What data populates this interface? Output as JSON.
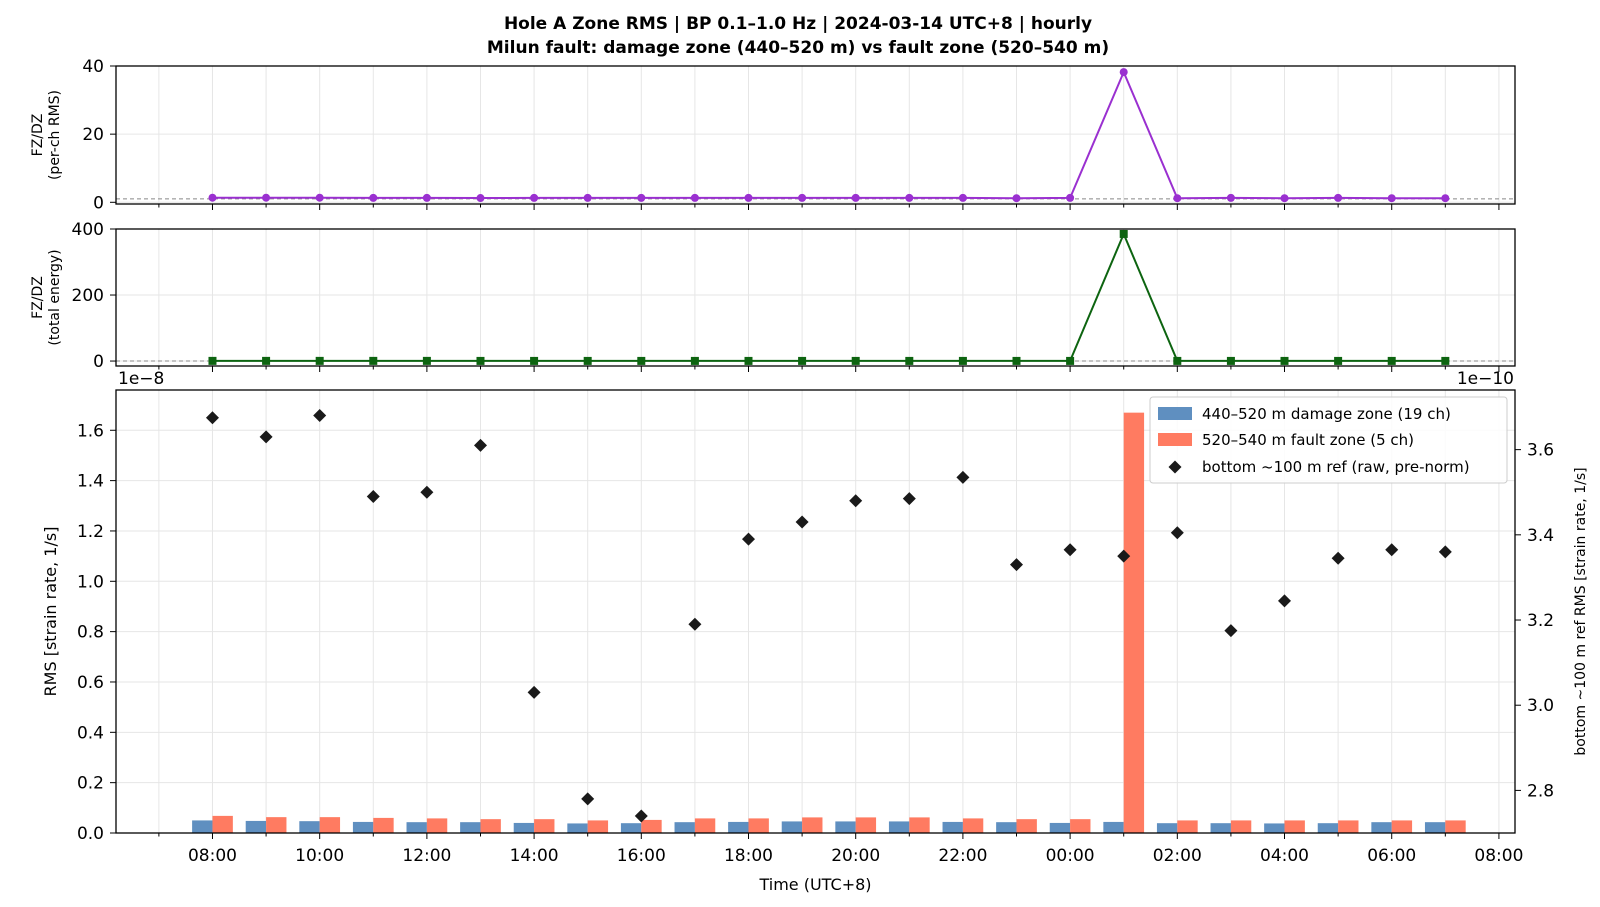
{
  "title_line1": "Hole A Zone RMS  |  BP 0.1–1.0 Hz  |  2024-03-14 UTC+8  |  hourly",
  "title_line2": "Milun fault: damage zone (440–520 m) vs fault zone (520–540 m)",
  "colors": {
    "damage": "#5f8fc0",
    "fault": "#ff7b61",
    "per_ch": "#9a30d0",
    "energy": "#0d6410",
    "ref": "#1a1a1a"
  },
  "chart_data": [
    {
      "type": "line",
      "panel": "top",
      "ylabel": [
        "FZ/DZ",
        "(per-ch RMS)"
      ],
      "ylim": [
        -0.5,
        40
      ],
      "yticks": [
        0,
        20,
        40
      ],
      "reference_line": 1,
      "grid": true,
      "x_hours": [
        8,
        9,
        10,
        11,
        12,
        13,
        14,
        15,
        16,
        17,
        18,
        19,
        20,
        21,
        22,
        23,
        24,
        25,
        26,
        27,
        28,
        29,
        30,
        31
      ],
      "values": [
        1.35,
        1.35,
        1.35,
        1.3,
        1.3,
        1.25,
        1.3,
        1.3,
        1.3,
        1.3,
        1.3,
        1.3,
        1.3,
        1.3,
        1.3,
        1.2,
        1.3,
        38.2,
        1.2,
        1.3,
        1.2,
        1.3,
        1.2,
        1.2
      ]
    },
    {
      "type": "line",
      "panel": "middle",
      "ylabel": [
        "FZ/DZ",
        "(total energy)"
      ],
      "ylim": [
        -15,
        400
      ],
      "yticks": [
        0,
        200,
        400
      ],
      "reference_line": 0,
      "grid": true,
      "x_hours": [
        8,
        9,
        10,
        11,
        12,
        13,
        14,
        15,
        16,
        17,
        18,
        19,
        20,
        21,
        22,
        23,
        24,
        25,
        26,
        27,
        28,
        29,
        30,
        31
      ],
      "values": [
        0.5,
        0.5,
        0.5,
        0.5,
        0.5,
        0.4,
        0.4,
        0.4,
        0.4,
        0.4,
        0.4,
        0.4,
        0.4,
        0.4,
        0.4,
        0.4,
        0.4,
        385,
        0.4,
        0.4,
        0.4,
        0.4,
        0.4,
        0.4
      ]
    },
    {
      "type": "bar",
      "panel": "bottom",
      "ylabel": "RMS  [strain rate, 1/s]",
      "y2label": "bottom ~100 m ref RMS  [strain rate, 1/s]",
      "xlabel": "Time (UTC+8)",
      "offset_left": "1e−8",
      "offset_right": "1e−10",
      "ylim": [
        0,
        1.76
      ],
      "yticks": [
        "0.0",
        "0.2",
        "0.4",
        "0.6",
        "0.8",
        "1.0",
        "1.2",
        "1.4",
        "1.6"
      ],
      "y2lim": [
        2.7,
        3.74
      ],
      "y2ticks": [
        "2.8",
        "3.0",
        "3.2",
        "3.4",
        "3.6"
      ],
      "xlim_hours": [
        6.2,
        32.3
      ],
      "xtick_labels": [
        "08:00",
        "10:00",
        "12:00",
        "14:00",
        "16:00",
        "18:00",
        "20:00",
        "22:00",
        "00:00",
        "02:00",
        "04:00",
        "06:00",
        "08:00"
      ],
      "xtick_hours": [
        8,
        10,
        12,
        14,
        16,
        18,
        20,
        22,
        24,
        26,
        28,
        30,
        32
      ],
      "grid": true,
      "legend_position": "top-right",
      "x_hours": [
        8,
        9,
        10,
        11,
        12,
        13,
        14,
        15,
        16,
        17,
        18,
        19,
        20,
        21,
        22,
        23,
        24,
        25,
        26,
        27,
        28,
        29,
        30,
        31
      ],
      "series": [
        {
          "name": "440–520 m  damage zone (19 ch)",
          "kind": "bar",
          "values": [
            0.05,
            0.048,
            0.047,
            0.044,
            0.043,
            0.043,
            0.04,
            0.038,
            0.039,
            0.043,
            0.044,
            0.046,
            0.046,
            0.046,
            0.044,
            0.043,
            0.04,
            0.044,
            0.039,
            0.039,
            0.038,
            0.039,
            0.043,
            0.043
          ]
        },
        {
          "name": "520–540 m  fault zone (5 ch)",
          "kind": "bar",
          "values": [
            0.068,
            0.063,
            0.063,
            0.06,
            0.058,
            0.055,
            0.055,
            0.05,
            0.052,
            0.058,
            0.058,
            0.062,
            0.062,
            0.062,
            0.058,
            0.055,
            0.055,
            1.67,
            0.05,
            0.05,
            0.05,
            0.05,
            0.05,
            0.05
          ]
        },
        {
          "name": "bottom ~100 m ref (raw, pre-norm)",
          "kind": "scatter",
          "axis": "right",
          "values": [
            3.675,
            3.63,
            3.68,
            3.49,
            3.5,
            3.61,
            3.03,
            2.78,
            2.74,
            3.19,
            3.39,
            3.43,
            3.48,
            3.485,
            3.535,
            3.33,
            3.365,
            3.35,
            3.405,
            3.175,
            3.245,
            3.345,
            3.365,
            3.36
          ]
        }
      ]
    }
  ]
}
